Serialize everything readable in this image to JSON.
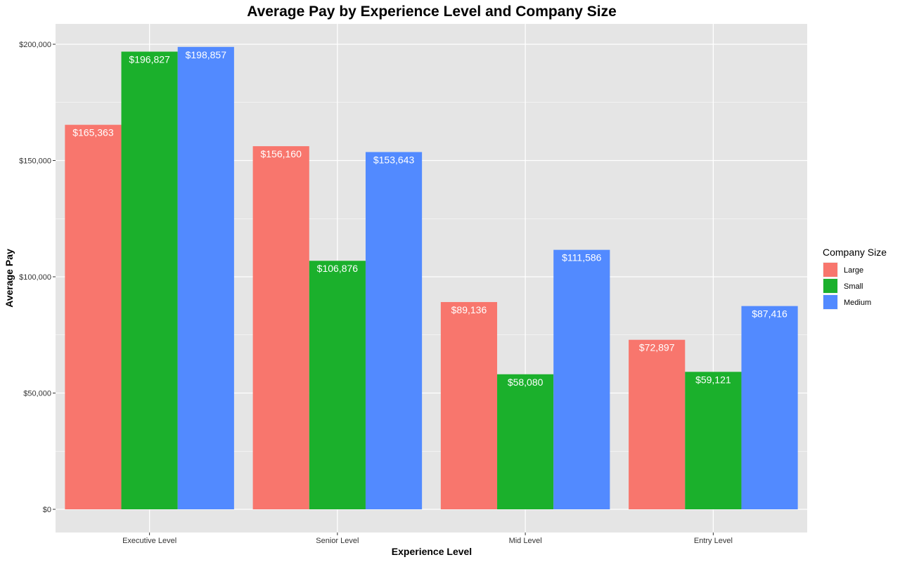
{
  "chart_data": {
    "type": "bar",
    "title": "Average Pay by Experience Level and Company Size",
    "xlabel": "Experience Level",
    "ylabel": "Average Pay",
    "categories": [
      "Executive Level",
      "Senior Level",
      "Mid Level",
      "Entry Level"
    ],
    "series": [
      {
        "name": "Large",
        "color": "#F8766D",
        "values": [
          165363,
          156160,
          89136,
          72897
        ],
        "labels": [
          "$165,363",
          "$156,160",
          "$89,136",
          "$72,897"
        ]
      },
      {
        "name": "Small",
        "color": "#1BB02C",
        "values": [
          196827,
          106876,
          58080,
          59121
        ],
        "labels": [
          "$196,827",
          "$106,876",
          "$58,080",
          "$59,121"
        ]
      },
      {
        "name": "Medium",
        "color": "#528AFF",
        "values": [
          198857,
          153643,
          111586,
          87416
        ],
        "labels": [
          "$198,857",
          "$153,643",
          "$111,586",
          "$87,416"
        ]
      }
    ],
    "ylim": [
      0,
      200000
    ],
    "y_ticks": [
      0,
      50000,
      100000,
      150000,
      200000
    ],
    "y_tick_labels": [
      "$0",
      "$50,000",
      "$100,000",
      "$150,000",
      "$200,000"
    ],
    "legend": {
      "title": "Company Size",
      "position": "right"
    },
    "grid": true,
    "panel_background": "#E5E5E5",
    "grid_color": "#FFFFFF"
  }
}
